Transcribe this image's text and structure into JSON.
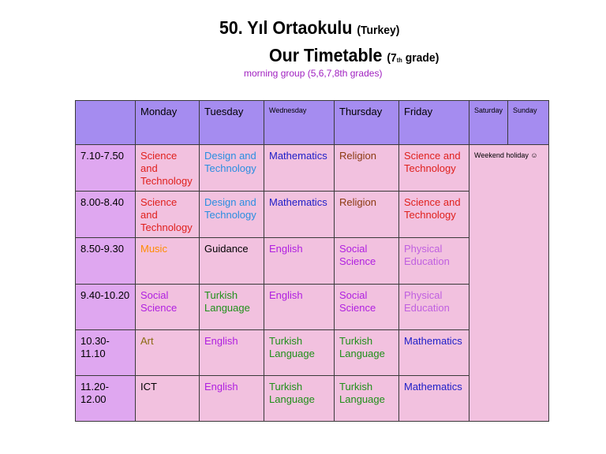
{
  "header": {
    "school_name": "50. Yıl Ortaokulu",
    "country": "(Turkey)",
    "timetable_title": "Our Timetable",
    "grade_prefix": "(7",
    "grade_sup": "th",
    "grade_suffix": " grade)",
    "group_label": "morning group (5,6,7,8th grades)"
  },
  "days": [
    "Monday",
    "Tuesday",
    "Wednesday",
    "Thursday",
    "Friday",
    "Saturday",
    "Sunday"
  ],
  "weekend_note": "Weekend holiday ☺",
  "colors": {
    "header_bg": "#a58cf0",
    "time_bg": "#dfa7f0",
    "cell_bg": "#f2c1df",
    "science": "#e0201c",
    "design": "#2a8ee0",
    "math": "#2020c8",
    "religion": "#8b3a10",
    "music": "#ff8c00",
    "english": "#b020e0",
    "social": "#b020e0",
    "physical": "#c060e0",
    "turkish": "#20901a",
    "art": "#8b6a10",
    "plain": "#000000"
  },
  "periods": [
    {
      "time": "7.10-7.50",
      "lessons": [
        {
          "l1": "Science and",
          "l2": "Technology",
          "color": "#e0201c"
        },
        {
          "l1": "Design and",
          "l2": "Technology",
          "color": "#2a8ee0"
        },
        {
          "l1": "Mathematics",
          "l2": "",
          "color": "#2020c8"
        },
        {
          "l1": "Religion",
          "l2": "",
          "color": "#8b3a10"
        },
        {
          "l1": "Science and",
          "l2": "Technology",
          "color": "#e0201c"
        }
      ]
    },
    {
      "time": "8.00-8.40",
      "lessons": [
        {
          "l1": "Science and",
          "l2": "Technology",
          "color": "#e0201c"
        },
        {
          "l1": "Design and",
          "l2": "Technology",
          "color": "#2a8ee0"
        },
        {
          "l1": "Mathematics",
          "l2": "",
          "color": "#2020c8"
        },
        {
          "l1": "Religion",
          "l2": "",
          "color": "#8b3a10"
        },
        {
          "l1": "Science and",
          "l2": "Technology",
          "color": "#e0201c"
        }
      ]
    },
    {
      "time": "8.50-9.30",
      "lessons": [
        {
          "l1": "Music",
          "l2": "",
          "color": "#ff8c00"
        },
        {
          "l1": "Guidance",
          "l2": "",
          "color": "#000000"
        },
        {
          "l1": "English",
          "l2": "",
          "color": "#b020e0"
        },
        {
          "l1": "Social",
          "l2": "Science",
          "color": "#b020e0"
        },
        {
          "l1": "Physical",
          "l2": "Education",
          "color": "#c060e0"
        }
      ]
    },
    {
      "time": "9.40-10.20",
      "lessons": [
        {
          "l1": "Social",
          "l2": "Science",
          "color": "#b020e0"
        },
        {
          "l1": "Turkish",
          "l2": "Language",
          "color": "#20901a"
        },
        {
          "l1": "English",
          "l2": "",
          "color": "#b020e0"
        },
        {
          "l1": "Social",
          "l2": "Science",
          "color": "#b020e0"
        },
        {
          "l1": "Physical",
          "l2": "Education",
          "color": "#c060e0"
        }
      ]
    },
    {
      "time": "10.30-11.10",
      "lessons": [
        {
          "l1": "Art",
          "l2": "",
          "color": "#8b6a10"
        },
        {
          "l1": "English",
          "l2": "",
          "color": "#b020e0"
        },
        {
          "l1": "Turkish",
          "l2": "Language",
          "color": "#20901a"
        },
        {
          "l1": "Turkish",
          "l2": "Language",
          "color": "#20901a"
        },
        {
          "l1": "Mathematics",
          "l2": "",
          "color": "#2020c8"
        }
      ]
    },
    {
      "time": "11.20-12.00",
      "lessons": [
        {
          "l1": "ICT",
          "l2": "",
          "color": "#000000"
        },
        {
          "l1": "English",
          "l2": "",
          "color": "#b020e0"
        },
        {
          "l1": "Turkish",
          "l2": "Language",
          "color": "#20901a"
        },
        {
          "l1": "Turkish",
          "l2": "Language",
          "color": "#20901a"
        },
        {
          "l1": "Mathematics",
          "l2": "",
          "color": "#2020c8"
        }
      ]
    }
  ]
}
